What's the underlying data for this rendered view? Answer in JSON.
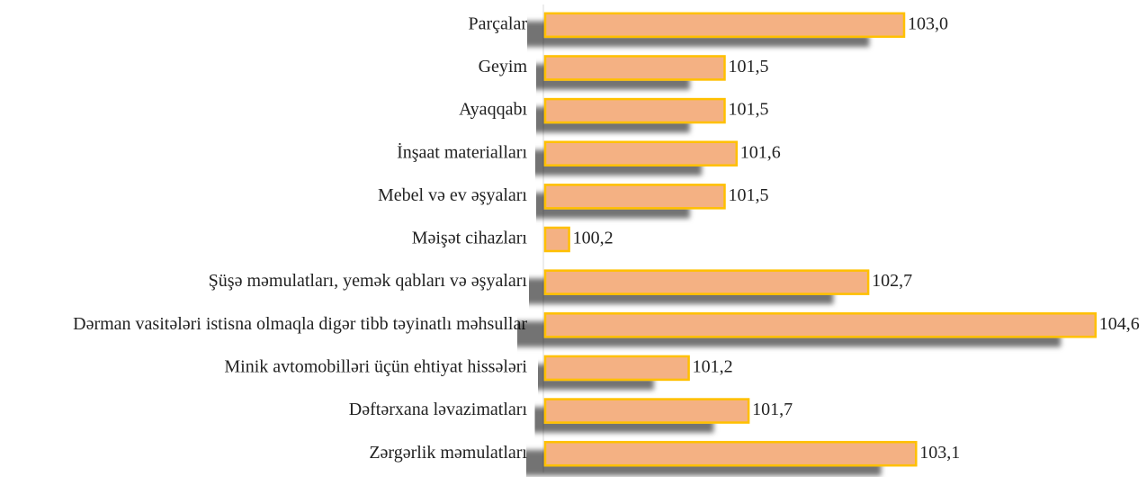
{
  "chart_data": {
    "type": "bar",
    "orientation": "horizontal",
    "categories": [
      "Parçalar",
      "Geyim",
      "Ayaqqabı",
      "İnşaat materialları",
      "Mebel və ev əşyaları",
      "Məişət cihazları",
      "Şüşə məmulatları,  yemək qabları və əşyaları",
      "Dərman vasitələri istisna olmaqla digər tibb təyinatlı məhsullar",
      "Minik  avtomobilləri  üçün ehtiyat hissələri",
      "Dəftərxana ləvazimatları",
      "Zərgərlik  məmulatları"
    ],
    "values": [
      103.0,
      101.5,
      101.5,
      101.6,
      101.5,
      100.2,
      102.7,
      104.6,
      101.2,
      101.7,
      103.1
    ],
    "value_labels": [
      "103,0",
      "101,5",
      "101,5",
      "101,6",
      "101,5",
      "100,2",
      "102,7",
      "104,6",
      "101,2",
      "101,7",
      "103,1"
    ],
    "color": "#f4b183",
    "edge_color": "#ffc000",
    "xlim": [
      100,
      105
    ]
  }
}
